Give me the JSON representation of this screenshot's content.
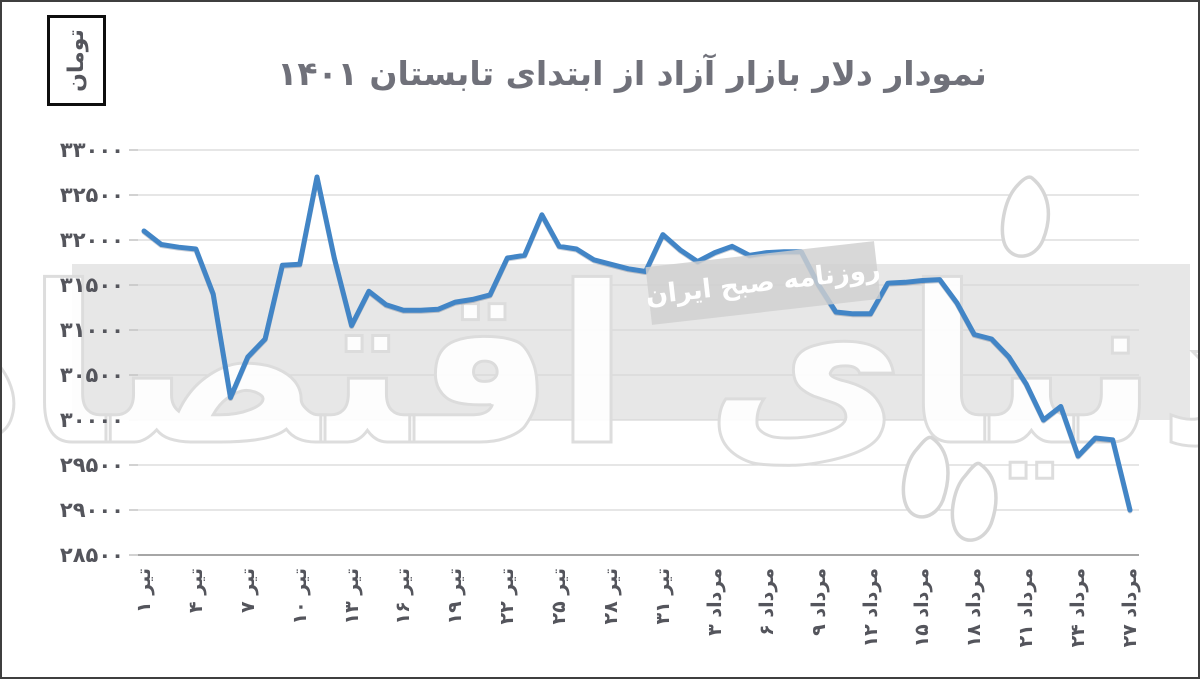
{
  "unit_box": {
    "label": "تومان"
  },
  "watermark": {
    "badge_text": "روزنامه صبح ایران",
    "logo_text": "دنیای اقتصاد"
  },
  "chart_data": {
    "type": "line",
    "title": "نمودار دلار بازار آزاد از ابتدای تابستان ۱۴۰۱",
    "unit": "تومان",
    "grid": true,
    "legend_position": "none",
    "ylim": [
      28500,
      33000
    ],
    "y_tick_step": 500,
    "y_tick_values": [
      33000,
      32500,
      32000,
      31500,
      31000,
      30500,
      30000,
      29500,
      29000,
      28500
    ],
    "y_tick_labels": [
      "۳۳۰۰۰",
      "۳۲۵۰۰",
      "۳۲۰۰۰",
      "۳۱۵۰۰",
      "۳۱۰۰۰",
      "۳۰۵۰۰",
      "۳۰۰۰۰",
      "۲۹۵۰۰",
      "۲۹۰۰۰",
      "۲۸۵۰۰"
    ],
    "x_tick_labels": [
      "تیر ۱",
      "تیر ۴",
      "تیر ۷",
      "تیر ۱۰",
      "تیر ۱۳",
      "تیر ۱۶",
      "تیر ۱۹",
      "تیر ۲۲",
      "تیر ۲۵",
      "تیر ۲۸",
      "تیر ۳۱",
      "مرداد ۳",
      "مرداد ۶",
      "مرداد ۹",
      "مرداد ۱۲",
      "مرداد ۱۵",
      "مرداد ۱۸",
      "مرداد ۲۱",
      "مرداد ۲۴",
      "مرداد ۲۷"
    ],
    "x_tick_every": 3,
    "n_points": 58,
    "values": [
      32100,
      31950,
      31920,
      31900,
      31400,
      30250,
      30700,
      30900,
      31720,
      31730,
      32700,
      31800,
      31050,
      31430,
      31280,
      31220,
      31220,
      31230,
      31310,
      31340,
      31390,
      31800,
      31830,
      32280,
      31930,
      31900,
      31780,
      31730,
      31680,
      31650,
      32060,
      31890,
      31760,
      31860,
      31930,
      31830,
      31860,
      31870,
      31870,
      31500,
      31200,
      31180,
      31180,
      31520,
      31530,
      31550,
      31560,
      31300,
      30950,
      30900,
      30700,
      30400,
      30000,
      30150,
      29600,
      29800,
      29780,
      29000
    ],
    "line_color": "#4285c6",
    "grid_color": "#d7d7d7",
    "axis_color": "#a6a6a6",
    "label_color": "#54555c",
    "title_color": "#70717a",
    "band_color": "#e7e7e7"
  }
}
